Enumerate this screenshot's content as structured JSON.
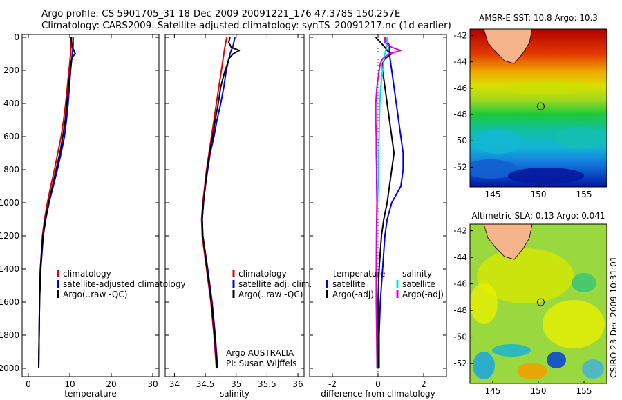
{
  "header": {
    "line1": "Argo profile: CS 5901705_31 18-Dec-2009 20091221_176 47.378S 150.257E",
    "line2": "Climatology: CARS2009. Satellite-adjusted climatology: synTS_20091217.nc (1d earlier)"
  },
  "footer": {
    "stamp": "CSIRO 23-Dec-2009 10:31:01",
    "argo_line1": "Argo AUSTRALIA",
    "argo_line2": "PI: Susan Wijffels"
  },
  "colors": {
    "climatology": "#e00000",
    "satellite": "#0000e0",
    "argo": "#000000",
    "salinity_sat": "#00e0e0",
    "salinity_argo": "#e000e0"
  },
  "chart_data": [
    {
      "type": "line",
      "id": "temperature",
      "xlabel": "temperature",
      "ylabel": "",
      "xlim": [
        -1.5,
        31.5
      ],
      "ylim": [
        2050,
        0
      ],
      "xticks": [
        0,
        10,
        20,
        30
      ],
      "yticks": [
        0,
        200,
        400,
        600,
        800,
        1000,
        1200,
        1400,
        1600,
        1800,
        2000
      ],
      "legend": [
        "climatology",
        "satellite-adjusted climatology",
        "Argo(..raw -QC)"
      ],
      "series": [
        {
          "name": "climatology",
          "color": "#e00000",
          "depth": [
            0,
            50,
            100,
            200,
            300,
            400,
            500,
            600,
            700,
            800,
            900,
            1000,
            1100,
            1200,
            1400,
            1600,
            1800,
            2000
          ],
          "values": [
            10.4,
            10.3,
            10.2,
            9.8,
            9.4,
            9.0,
            8.5,
            7.9,
            7.1,
            6.3,
            5.4,
            4.6,
            3.9,
            3.4,
            2.9,
            2.7,
            2.6,
            2.5
          ]
        },
        {
          "name": "satellite-adjusted climatology",
          "color": "#0000e0",
          "depth": [
            0,
            50,
            100,
            200,
            300,
            400,
            500,
            600,
            700,
            800,
            900,
            1000,
            1100,
            1200,
            1400,
            1600,
            1800,
            2000
          ],
          "values": [
            10.8,
            10.8,
            10.6,
            10.2,
            9.9,
            9.6,
            9.2,
            8.7,
            7.9,
            7.0,
            6.0,
            5.0,
            4.2,
            3.6,
            3.0,
            2.7,
            2.6,
            2.5
          ]
        },
        {
          "name": "Argo(..raw -QC)",
          "color": "#000000",
          "depth": [
            0,
            30,
            60,
            80,
            100,
            120,
            150,
            200,
            300,
            400,
            500,
            600,
            700,
            800,
            900,
            1000,
            1100,
            1200,
            1400,
            1600,
            1800,
            2000
          ],
          "values": [
            10.3,
            10.4,
            10.6,
            11.0,
            11.3,
            10.6,
            10.3,
            10.1,
            9.7,
            9.3,
            8.9,
            8.3,
            7.6,
            6.7,
            5.8,
            4.9,
            4.1,
            3.5,
            2.9,
            2.7,
            2.6,
            2.5
          ]
        }
      ]
    },
    {
      "type": "line",
      "id": "salinity",
      "xlabel": "salinity",
      "ylabel": "",
      "xlim": [
        33.85,
        36.1
      ],
      "ylim": [
        2050,
        0
      ],
      "xticks": [
        34,
        34.5,
        35,
        35.5,
        36
      ],
      "yticks": [
        0,
        200,
        400,
        600,
        800,
        1000,
        1200,
        1400,
        1600,
        1800,
        2000
      ],
      "legend": [
        "climatology",
        "satellite adj. clim.",
        "Argo(..raw -QC)"
      ],
      "series": [
        {
          "name": "climatology",
          "color": "#e00000",
          "depth": [
            0,
            50,
            100,
            200,
            300,
            400,
            500,
            600,
            700,
            800,
            900,
            1000,
            1100,
            1200,
            1400,
            1600,
            1800,
            2000
          ],
          "values": [
            34.85,
            34.82,
            34.8,
            34.76,
            34.72,
            34.68,
            34.64,
            34.6,
            34.56,
            34.52,
            34.49,
            34.46,
            34.44,
            34.45,
            34.52,
            34.59,
            34.64,
            34.68
          ]
        },
        {
          "name": "satellite adj. clim.",
          "color": "#0000e0",
          "depth": [
            0,
            50,
            100,
            200,
            300,
            400,
            500,
            600,
            700,
            800,
            900,
            1000,
            1100,
            1200,
            1400,
            1600,
            1800,
            2000
          ],
          "values": [
            34.98,
            34.95,
            34.9,
            34.84,
            34.8,
            34.75,
            34.69,
            34.64,
            34.58,
            34.54,
            34.5,
            34.47,
            34.45,
            34.46,
            34.54,
            34.61,
            34.66,
            34.7
          ]
        },
        {
          "name": "Argo(..raw -QC)",
          "color": "#000000",
          "depth": [
            0,
            30,
            60,
            80,
            100,
            130,
            160,
            200,
            300,
            400,
            500,
            600,
            700,
            800,
            900,
            1000,
            1100,
            1200,
            1400,
            1600,
            1800,
            2000
          ],
          "values": [
            34.9,
            34.88,
            34.92,
            35.05,
            34.95,
            34.88,
            34.86,
            34.82,
            34.75,
            34.71,
            34.66,
            34.62,
            34.57,
            34.53,
            34.5,
            34.47,
            34.45,
            34.46,
            34.53,
            34.6,
            34.65,
            34.69
          ]
        }
      ]
    },
    {
      "type": "line",
      "id": "difference",
      "xlabel": "difference from climatology",
      "ylabel": "",
      "xlim": [
        -3.0,
        3.0
      ],
      "ylim": [
        2050,
        0
      ],
      "xticks": [
        -2,
        0,
        2
      ],
      "yticks": [
        0,
        200,
        400,
        600,
        800,
        1000,
        1200,
        1400,
        1600,
        1800,
        2000
      ],
      "legend_temperature": {
        "heading": "temperature",
        "items": [
          "satellite",
          "Argo(-adj)"
        ]
      },
      "legend_salinity": {
        "heading": "salinity",
        "items": [
          "satellite",
          "Argo(-adj)"
        ]
      },
      "series": [
        {
          "name": "temperature satellite",
          "color": "#0000e0",
          "depth": [
            0,
            50,
            100,
            200,
            300,
            400,
            500,
            600,
            700,
            800,
            900,
            1000,
            1100,
            1200,
            1400,
            1600,
            1800,
            2000
          ],
          "values": [
            0.3,
            0.5,
            0.5,
            0.6,
            0.7,
            0.8,
            0.9,
            1.0,
            1.1,
            1.1,
            1.0,
            0.6,
            0.4,
            0.3,
            0.2,
            0.1,
            0.05,
            0.05
          ]
        },
        {
          "name": "temperature Argo(-adj)",
          "color": "#000000",
          "depth": [
            0,
            30,
            60,
            80,
            100,
            130,
            160,
            200,
            300,
            400,
            500,
            600,
            700,
            800,
            900,
            1000,
            1100,
            1200,
            1400,
            1600,
            1800,
            2000
          ],
          "values": [
            -0.1,
            0.1,
            0.3,
            0.4,
            0.6,
            0.3,
            0.2,
            0.2,
            0.3,
            0.4,
            0.5,
            0.6,
            0.7,
            0.6,
            0.5,
            0.4,
            0.25,
            0.15,
            0.05,
            0.0,
            0.0,
            0.0
          ]
        },
        {
          "name": "salinity satellite",
          "color": "#00e0e0",
          "depth": [
            0,
            50,
            100,
            200,
            300,
            400,
            500,
            600,
            700,
            800,
            900,
            1000,
            1100,
            1200,
            1400,
            1600,
            1800,
            2000
          ],
          "values": [
            0.4,
            0.4,
            0.3,
            0.2,
            0.12,
            0.08,
            0.06,
            0.05,
            0.03,
            0.02,
            0.0,
            -0.02,
            -0.05,
            -0.06,
            -0.07,
            -0.06,
            -0.05,
            -0.05
          ]
        },
        {
          "name": "salinity Argo(-adj)",
          "color": "#e000e0",
          "depth": [
            0,
            30,
            60,
            80,
            100,
            130,
            160,
            200,
            300,
            400,
            500,
            600,
            700,
            800,
            900,
            1000,
            1100,
            1200,
            1400,
            1600,
            1800,
            2000
          ],
          "values": [
            0.3,
            0.3,
            0.6,
            1.0,
            0.5,
            0.2,
            0.1,
            0.05,
            -0.05,
            -0.1,
            -0.1,
            -0.08,
            -0.08,
            -0.06,
            -0.06,
            -0.05,
            -0.06,
            -0.07,
            -0.08,
            -0.08,
            -0.06,
            -0.04
          ]
        }
      ]
    },
    {
      "type": "heatmap",
      "id": "sst_map",
      "title": "AMSR-E SST: 10.8  Argo: 10.3",
      "xlim": [
        142.5,
        157.5
      ],
      "ylim": [
        -53.5,
        -41.5
      ],
      "xticks": [
        145,
        150,
        155
      ],
      "yticks": [
        -42,
        -44,
        -46,
        -48,
        -50,
        -52
      ],
      "float_position": {
        "lon": 150.257,
        "lat": -47.378
      }
    },
    {
      "type": "heatmap",
      "id": "sla_map",
      "title": "Altimetric SLA: 0.13  Argo: 0.041",
      "xlim": [
        142.5,
        157.5
      ],
      "ylim": [
        -53.5,
        -41.5
      ],
      "xticks": [
        145,
        150,
        155
      ],
      "yticks": [
        -42,
        -44,
        -46,
        -48,
        -50,
        -52
      ],
      "float_position": {
        "lon": 150.257,
        "lat": -47.378
      }
    }
  ]
}
